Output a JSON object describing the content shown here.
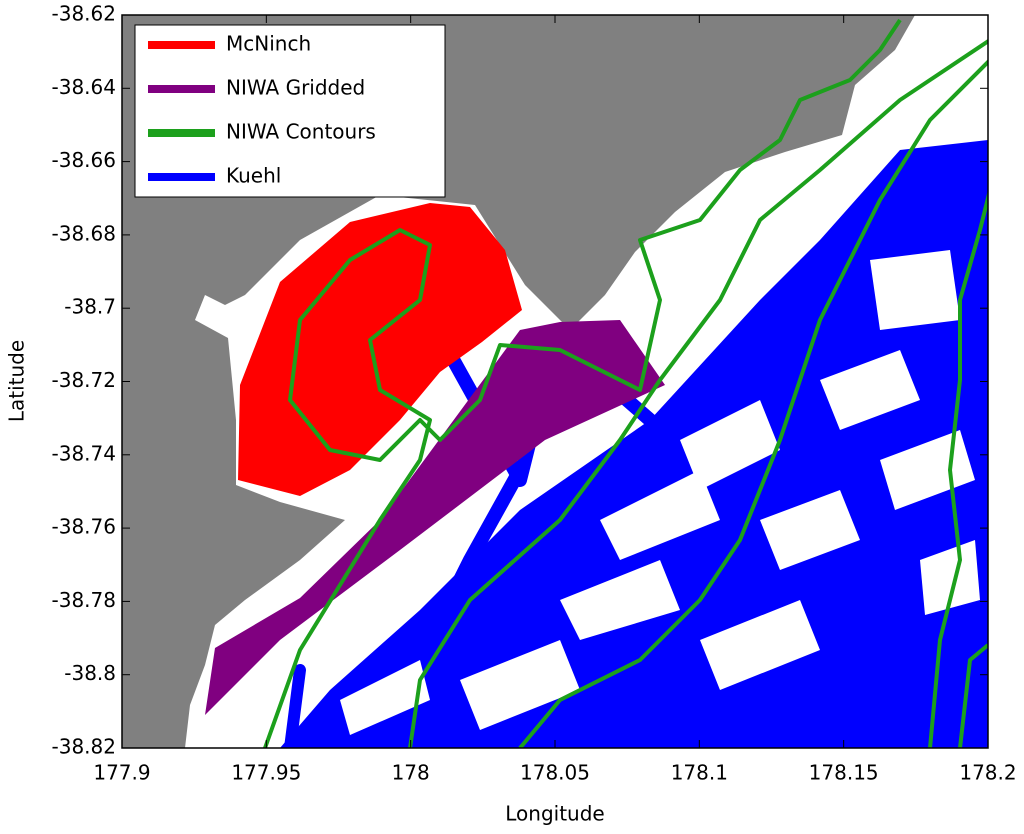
{
  "chart_data": {
    "type": "map",
    "xlabel": "Longitude",
    "ylabel": "Latitude",
    "xlim": [
      177.9,
      178.2
    ],
    "ylim": [
      -38.82,
      -38.62
    ],
    "xticks": [
      177.9,
      177.95,
      178,
      178.05,
      178.1,
      178.15,
      178.2
    ],
    "yticks": [
      -38.82,
      -38.8,
      -38.78,
      -38.76,
      -38.74,
      -38.72,
      -38.7,
      -38.68,
      -38.66,
      -38.64,
      -38.62
    ],
    "legend": "upper left",
    "series": [
      {
        "name": "McNinch",
        "color": "#ff0000"
      },
      {
        "name": "NIWA Gridded",
        "color": "#800080"
      },
      {
        "name": "NIWA Contours",
        "color": "#1ca01c"
      },
      {
        "name": "Kuehl",
        "color": "#0000ff"
      }
    ]
  }
}
